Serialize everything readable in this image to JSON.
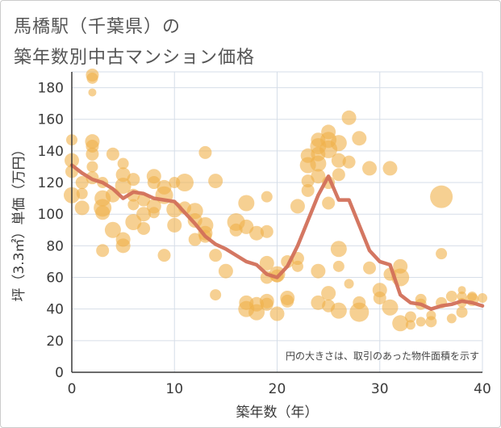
{
  "title_line1": "馬橋駅（千葉県）の",
  "title_line2": "築年数別中古マンション価格",
  "colors": {
    "bubble": "#f0b04a",
    "line": "#d2705a",
    "grid": "#d6dee8",
    "axis": "#3a3a3a"
  },
  "chart_data": {
    "type": "scatter",
    "title": "馬橋駅（千葉県）の築年数別中古マンション価格",
    "xlabel": "築年数（年）",
    "ylabel": "坪（3.3㎡）単価（万円）",
    "xlim": [
      0,
      40
    ],
    "ylim": [
      0,
      190
    ],
    "xticks": [
      "0",
      "10",
      "20",
      "30",
      "40"
    ],
    "yticks": [
      "0",
      "20",
      "40",
      "60",
      "80",
      "100",
      "120",
      "140",
      "160",
      "180"
    ],
    "grid": true,
    "annotation": "円の大きさは、取引のあった物件面積を示す",
    "series": [
      {
        "kind": "bubble",
        "points": [
          [
            0,
            147,
            7
          ],
          [
            0,
            134,
            9
          ],
          [
            0,
            127,
            8
          ],
          [
            0,
            112,
            10
          ],
          [
            1,
            104,
            9
          ],
          [
            1,
            113,
            7
          ],
          [
            1,
            120,
            8
          ],
          [
            2,
            188,
            8
          ],
          [
            2,
            186,
            7
          ],
          [
            2,
            177,
            5
          ],
          [
            2,
            146,
            9
          ],
          [
            2,
            143,
            8
          ],
          [
            2,
            138,
            8
          ],
          [
            2,
            130,
            7
          ],
          [
            2,
            123,
            8
          ],
          [
            3,
            110,
            10
          ],
          [
            3,
            104,
            11
          ],
          [
            3,
            101,
            9
          ],
          [
            3,
            77,
            8
          ],
          [
            3,
            120,
            7
          ],
          [
            4,
            112,
            9
          ],
          [
            4,
            90,
            10
          ],
          [
            4,
            138,
            8
          ],
          [
            5,
            125,
            9
          ],
          [
            5,
            132,
            7
          ],
          [
            5,
            118,
            10
          ],
          [
            5,
            84,
            9
          ],
          [
            5,
            80,
            9
          ],
          [
            6,
            112,
            8
          ],
          [
            6,
            122,
            8
          ],
          [
            6,
            106,
            7
          ],
          [
            6,
            95,
            10
          ],
          [
            7,
            100,
            9
          ],
          [
            7,
            91,
            8
          ],
          [
            7,
            109,
            8
          ],
          [
            8,
            120,
            8
          ],
          [
            8,
            124,
            9
          ],
          [
            8,
            101,
            7
          ],
          [
            8,
            105,
            9
          ],
          [
            9,
            112,
            11
          ],
          [
            9,
            117,
            9
          ],
          [
            9,
            74,
            8
          ],
          [
            10,
            103,
            10
          ],
          [
            10,
            120,
            7
          ],
          [
            10,
            93,
            9
          ],
          [
            11,
            120,
            11
          ],
          [
            11,
            104,
            8
          ],
          [
            12,
            102,
            10
          ],
          [
            12,
            84,
            8
          ],
          [
            12,
            96,
            9
          ],
          [
            13,
            139,
            8
          ],
          [
            13,
            93,
            10
          ],
          [
            13,
            88,
            9
          ],
          [
            13,
            86,
            8
          ],
          [
            14,
            121,
            9
          ],
          [
            14,
            74,
            8
          ],
          [
            14,
            49,
            7
          ],
          [
            15,
            64,
            9
          ],
          [
            16,
            95,
            11
          ],
          [
            16,
            90,
            8
          ],
          [
            17,
            107,
            10
          ],
          [
            17,
            92,
            9
          ],
          [
            17,
            44,
            9
          ],
          [
            17,
            40,
            10
          ],
          [
            18,
            88,
            9
          ],
          [
            18,
            38,
            10
          ],
          [
            18,
            43,
            9
          ],
          [
            19,
            111,
            7
          ],
          [
            19,
            89,
            8
          ],
          [
            19,
            69,
            9
          ],
          [
            19,
            60,
            8
          ],
          [
            19,
            45,
            9
          ],
          [
            19,
            43,
            8
          ],
          [
            20,
            37,
            9
          ],
          [
            20,
            61,
            8
          ],
          [
            20,
            62,
            10
          ],
          [
            21,
            47,
            9
          ],
          [
            21,
            45,
            8
          ],
          [
            21,
            70,
            8
          ],
          [
            22,
            105,
            9
          ],
          [
            22,
            72,
            8
          ],
          [
            22,
            67,
            7
          ],
          [
            23,
            137,
            9
          ],
          [
            23,
            131,
            10
          ],
          [
            23,
            121,
            8
          ],
          [
            23,
            115,
            8
          ],
          [
            24,
            147,
            9
          ],
          [
            24,
            143,
            10
          ],
          [
            24,
            138,
            9
          ],
          [
            24,
            132,
            10
          ],
          [
            24,
            124,
            9
          ],
          [
            24,
            64,
            9
          ],
          [
            24,
            44,
            9
          ],
          [
            25,
            152,
            9
          ],
          [
            25,
            147,
            10
          ],
          [
            25,
            141,
            11
          ],
          [
            25,
            120,
            8
          ],
          [
            25,
            107,
            8
          ],
          [
            25,
            50,
            9
          ],
          [
            25,
            42,
            8
          ],
          [
            26,
            145,
            10
          ],
          [
            26,
            134,
            9
          ],
          [
            26,
            125,
            8
          ],
          [
            26,
            78,
            10
          ],
          [
            26,
            67,
            7
          ],
          [
            26,
            39,
            10
          ],
          [
            27,
            161,
            9
          ],
          [
            27,
            133,
            8
          ],
          [
            27,
            56,
            6
          ],
          [
            28,
            148,
            9
          ],
          [
            28,
            44,
            8
          ],
          [
            28,
            38,
            12
          ],
          [
            29,
            129,
            9
          ],
          [
            29,
            66,
            8
          ],
          [
            30,
            52,
            9
          ],
          [
            30,
            47,
            8
          ],
          [
            31,
            129,
            9
          ],
          [
            31,
            62,
            8
          ],
          [
            31,
            41,
            10
          ],
          [
            32,
            67,
            9
          ],
          [
            32,
            60,
            11
          ],
          [
            32,
            31,
            10
          ],
          [
            33,
            35,
            7
          ],
          [
            33,
            30,
            6
          ],
          [
            34,
            43,
            7
          ],
          [
            34,
            46,
            7
          ],
          [
            34,
            32,
            6
          ],
          [
            35,
            36,
            6
          ],
          [
            35,
            32,
            7
          ],
          [
            36,
            111,
            14
          ],
          [
            36,
            75,
            7
          ],
          [
            36,
            44,
            7
          ],
          [
            37,
            48,
            7
          ],
          [
            37,
            34,
            6
          ],
          [
            38,
            44,
            6
          ],
          [
            38,
            48,
            6
          ],
          [
            38,
            52,
            5
          ],
          [
            38,
            38,
            7
          ],
          [
            39,
            48,
            6
          ],
          [
            39,
            46,
            8
          ],
          [
            40,
            47,
            6
          ]
        ]
      },
      {
        "kind": "line",
        "x": [
          0,
          1,
          2,
          3,
          4,
          5,
          6,
          7,
          8,
          9,
          10,
          11,
          12,
          13,
          14,
          15,
          16,
          17,
          18,
          19,
          20,
          21,
          22,
          23,
          24,
          25,
          26,
          27,
          28,
          29,
          30,
          31,
          32,
          33,
          34,
          35,
          36,
          37,
          38,
          39,
          40
        ],
        "y": [
          131,
          126,
          122,
          120,
          116,
          110,
          114,
          113,
          110,
          109,
          108,
          101,
          94,
          86,
          81,
          78,
          74,
          70,
          68,
          62,
          60,
          67,
          80,
          96,
          112,
          124,
          109,
          109,
          93,
          77,
          70,
          68,
          49,
          44,
          43,
          40,
          42,
          43,
          45,
          44,
          42
        ]
      }
    ]
  }
}
